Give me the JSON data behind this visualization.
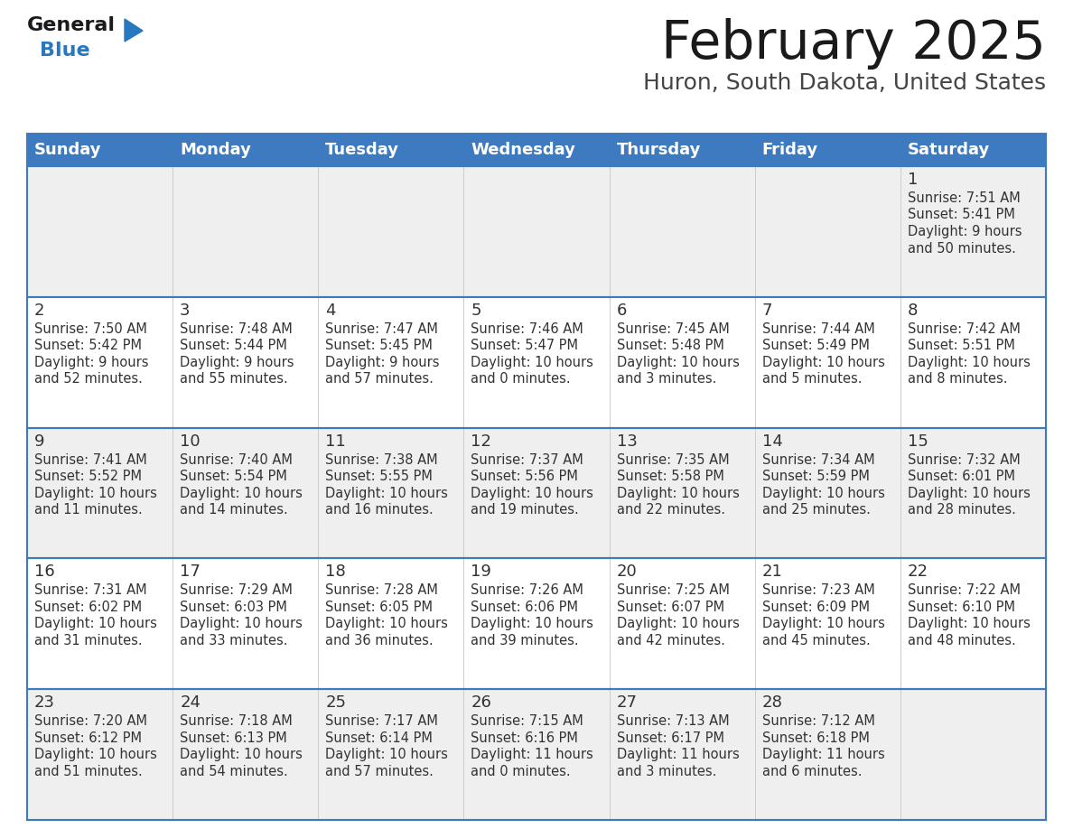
{
  "title": "February 2025",
  "subtitle": "Huron, South Dakota, United States",
  "days_of_week": [
    "Sunday",
    "Monday",
    "Tuesday",
    "Wednesday",
    "Thursday",
    "Friday",
    "Saturday"
  ],
  "header_bg": "#3d7abf",
  "header_text": "#FFFFFF",
  "cell_bg_odd": "#efefef",
  "cell_bg_even": "#ffffff",
  "cell_text": "#333333",
  "border_color": "#3d7abf",
  "title_color": "#1a1a1a",
  "subtitle_color": "#444444",
  "logo_general_color": "#1a1a1a",
  "logo_blue_color": "#2878C0",
  "logo_triangle_color": "#2878C0",
  "weeks": [
    [
      {
        "day": null,
        "sunrise": null,
        "sunset": null,
        "daylight": null
      },
      {
        "day": null,
        "sunrise": null,
        "sunset": null,
        "daylight": null
      },
      {
        "day": null,
        "sunrise": null,
        "sunset": null,
        "daylight": null
      },
      {
        "day": null,
        "sunrise": null,
        "sunset": null,
        "daylight": null
      },
      {
        "day": null,
        "sunrise": null,
        "sunset": null,
        "daylight": null
      },
      {
        "day": null,
        "sunrise": null,
        "sunset": null,
        "daylight": null
      },
      {
        "day": 1,
        "sunrise": "7:51 AM",
        "sunset": "5:41 PM",
        "daylight": "9 hours and 50 minutes."
      }
    ],
    [
      {
        "day": 2,
        "sunrise": "7:50 AM",
        "sunset": "5:42 PM",
        "daylight": "9 hours and 52 minutes."
      },
      {
        "day": 3,
        "sunrise": "7:48 AM",
        "sunset": "5:44 PM",
        "daylight": "9 hours and 55 minutes."
      },
      {
        "day": 4,
        "sunrise": "7:47 AM",
        "sunset": "5:45 PM",
        "daylight": "9 hours and 57 minutes."
      },
      {
        "day": 5,
        "sunrise": "7:46 AM",
        "sunset": "5:47 PM",
        "daylight": "10 hours and 0 minutes."
      },
      {
        "day": 6,
        "sunrise": "7:45 AM",
        "sunset": "5:48 PM",
        "daylight": "10 hours and 3 minutes."
      },
      {
        "day": 7,
        "sunrise": "7:44 AM",
        "sunset": "5:49 PM",
        "daylight": "10 hours and 5 minutes."
      },
      {
        "day": 8,
        "sunrise": "7:42 AM",
        "sunset": "5:51 PM",
        "daylight": "10 hours and 8 minutes."
      }
    ],
    [
      {
        "day": 9,
        "sunrise": "7:41 AM",
        "sunset": "5:52 PM",
        "daylight": "10 hours and 11 minutes."
      },
      {
        "day": 10,
        "sunrise": "7:40 AM",
        "sunset": "5:54 PM",
        "daylight": "10 hours and 14 minutes."
      },
      {
        "day": 11,
        "sunrise": "7:38 AM",
        "sunset": "5:55 PM",
        "daylight": "10 hours and 16 minutes."
      },
      {
        "day": 12,
        "sunrise": "7:37 AM",
        "sunset": "5:56 PM",
        "daylight": "10 hours and 19 minutes."
      },
      {
        "day": 13,
        "sunrise": "7:35 AM",
        "sunset": "5:58 PM",
        "daylight": "10 hours and 22 minutes."
      },
      {
        "day": 14,
        "sunrise": "7:34 AM",
        "sunset": "5:59 PM",
        "daylight": "10 hours and 25 minutes."
      },
      {
        "day": 15,
        "sunrise": "7:32 AM",
        "sunset": "6:01 PM",
        "daylight": "10 hours and 28 minutes."
      }
    ],
    [
      {
        "day": 16,
        "sunrise": "7:31 AM",
        "sunset": "6:02 PM",
        "daylight": "10 hours and 31 minutes."
      },
      {
        "day": 17,
        "sunrise": "7:29 AM",
        "sunset": "6:03 PM",
        "daylight": "10 hours and 33 minutes."
      },
      {
        "day": 18,
        "sunrise": "7:28 AM",
        "sunset": "6:05 PM",
        "daylight": "10 hours and 36 minutes."
      },
      {
        "day": 19,
        "sunrise": "7:26 AM",
        "sunset": "6:06 PM",
        "daylight": "10 hours and 39 minutes."
      },
      {
        "day": 20,
        "sunrise": "7:25 AM",
        "sunset": "6:07 PM",
        "daylight": "10 hours and 42 minutes."
      },
      {
        "day": 21,
        "sunrise": "7:23 AM",
        "sunset": "6:09 PM",
        "daylight": "10 hours and 45 minutes."
      },
      {
        "day": 22,
        "sunrise": "7:22 AM",
        "sunset": "6:10 PM",
        "daylight": "10 hours and 48 minutes."
      }
    ],
    [
      {
        "day": 23,
        "sunrise": "7:20 AM",
        "sunset": "6:12 PM",
        "daylight": "10 hours and 51 minutes."
      },
      {
        "day": 24,
        "sunrise": "7:18 AM",
        "sunset": "6:13 PM",
        "daylight": "10 hours and 54 minutes."
      },
      {
        "day": 25,
        "sunrise": "7:17 AM",
        "sunset": "6:14 PM",
        "daylight": "10 hours and 57 minutes."
      },
      {
        "day": 26,
        "sunrise": "7:15 AM",
        "sunset": "6:16 PM",
        "daylight": "11 hours and 0 minutes."
      },
      {
        "day": 27,
        "sunrise": "7:13 AM",
        "sunset": "6:17 PM",
        "daylight": "11 hours and 3 minutes."
      },
      {
        "day": 28,
        "sunrise": "7:12 AM",
        "sunset": "6:18 PM",
        "daylight": "11 hours and 6 minutes."
      },
      {
        "day": null,
        "sunrise": null,
        "sunset": null,
        "daylight": null
      }
    ]
  ]
}
